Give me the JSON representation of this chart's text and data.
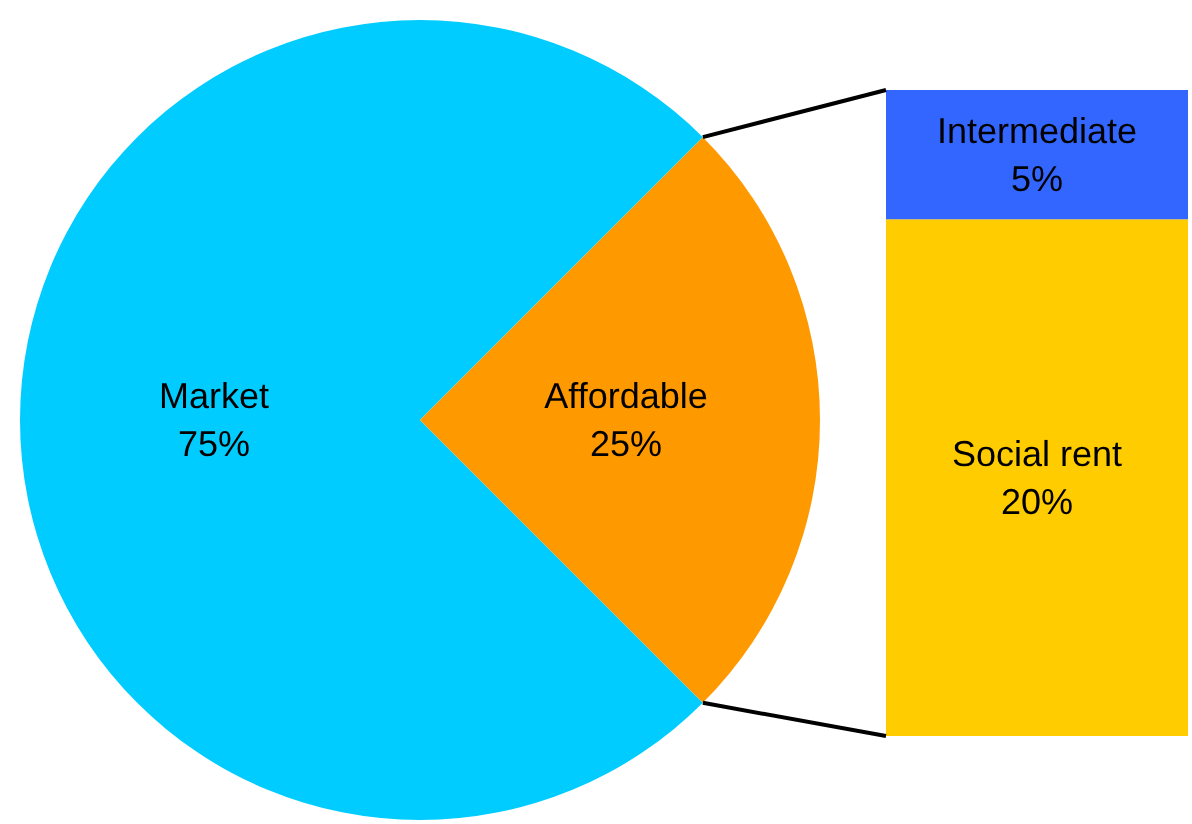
{
  "chart_data": [
    {
      "type": "pie",
      "categories": [
        "Market",
        "Affordable"
      ],
      "values": [
        75,
        25
      ],
      "colors": [
        "#00ccff",
        "#ff9900"
      ],
      "value_labels": [
        "75%",
        "25%"
      ]
    },
    {
      "type": "bar",
      "stacked": true,
      "categories": [
        null
      ],
      "ylim": [
        0,
        25
      ],
      "tick_labels": false,
      "series": [
        {
          "name": "Social rent",
          "color": "#ffcc00",
          "values": [
            20
          ],
          "value_labels": [
            "20%"
          ]
        },
        {
          "name": "Intermediate",
          "color": "#3366ff",
          "values": [
            5
          ],
          "value_labels": [
            "5%"
          ]
        }
      ]
    }
  ]
}
